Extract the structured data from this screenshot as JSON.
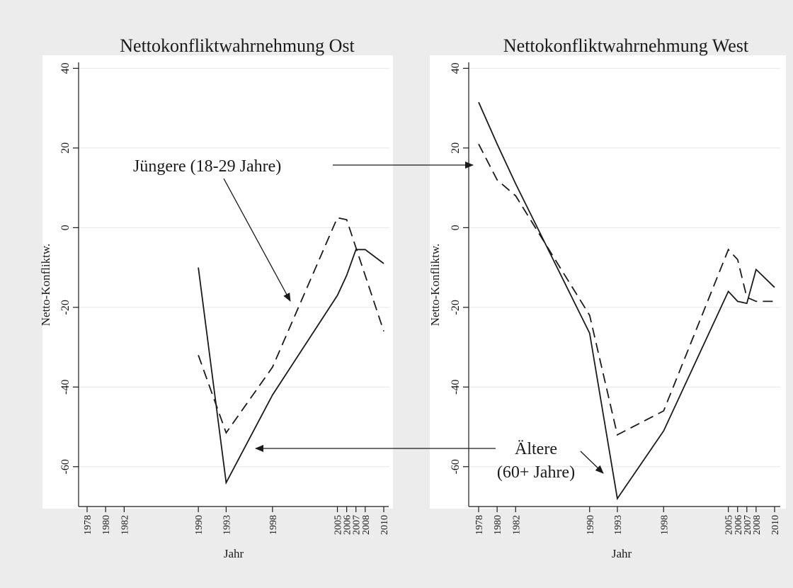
{
  "figure": {
    "background": "#ececec",
    "plot_background": "#ffffff",
    "line_color": "#1a1a1a",
    "grid_color": "#e6e6e6"
  },
  "annotations": {
    "young": "Jüngere (18-29 Jahre)",
    "old_line1": "Ältere",
    "old_line2": "(60+ Jahre)"
  },
  "chart_data": [
    {
      "type": "line",
      "title": "Nettokonfliktwahrnehmung Ost",
      "xlabel": "Jahr",
      "ylabel": "Netto-Konfliktw.",
      "x_ticks": [
        1978,
        1980,
        1982,
        1990,
        1993,
        1998,
        2005,
        2006,
        2007,
        2008,
        2010
      ],
      "y_ticks": [
        -60,
        -40,
        -20,
        0,
        20,
        40
      ],
      "ylim": [
        -70,
        42
      ],
      "grid": true,
      "series": [
        {
          "style": "dashed",
          "points": [
            [
              1990,
              -32
            ],
            [
              1993,
              -51.5
            ],
            [
              1998,
              -35
            ],
            [
              2005,
              2.5
            ],
            [
              2006,
              2
            ],
            [
              2007,
              -5
            ],
            [
              2010,
              -26
            ]
          ]
        },
        {
          "style": "solid",
          "points": [
            [
              1990,
              -10
            ],
            [
              1993,
              -64
            ],
            [
              1998,
              -42
            ],
            [
              2005,
              -17
            ],
            [
              2006,
              -12
            ],
            [
              2007,
              -5.5
            ],
            [
              2008,
              -5.5
            ],
            [
              2010,
              -9
            ]
          ]
        }
      ]
    },
    {
      "type": "line",
      "title": "Nettokonfliktwahrnehmung West",
      "xlabel": "Jahr",
      "ylabel": "Netto-Konfliktw.",
      "x_ticks": [
        1978,
        1980,
        1982,
        1990,
        1993,
        1998,
        2005,
        2006,
        2007,
        2008,
        2010
      ],
      "y_ticks": [
        -60,
        -40,
        -20,
        0,
        20,
        40
      ],
      "ylim": [
        -70,
        42
      ],
      "grid": true,
      "series": [
        {
          "style": "dashed",
          "points": [
            [
              1978,
              21
            ],
            [
              1980,
              12
            ],
            [
              1982,
              8
            ],
            [
              1990,
              -22
            ],
            [
              1993,
              -52
            ],
            [
              1998,
              -46
            ],
            [
              2005,
              -5.5
            ],
            [
              2006,
              -8
            ],
            [
              2007,
              -17.5
            ],
            [
              2008,
              -18.5
            ],
            [
              2010,
              -18.5
            ]
          ]
        },
        {
          "style": "solid",
          "points": [
            [
              1978,
              31.5
            ],
            [
              1980,
              21
            ],
            [
              1982,
              11
            ],
            [
              1990,
              -26.5
            ],
            [
              1993,
              -68
            ],
            [
              1998,
              -51
            ],
            [
              2005,
              -16
            ],
            [
              2006,
              -18.5
            ],
            [
              2007,
              -19
            ],
            [
              2008,
              -10.5
            ],
            [
              2010,
              -15
            ]
          ]
        }
      ]
    }
  ]
}
